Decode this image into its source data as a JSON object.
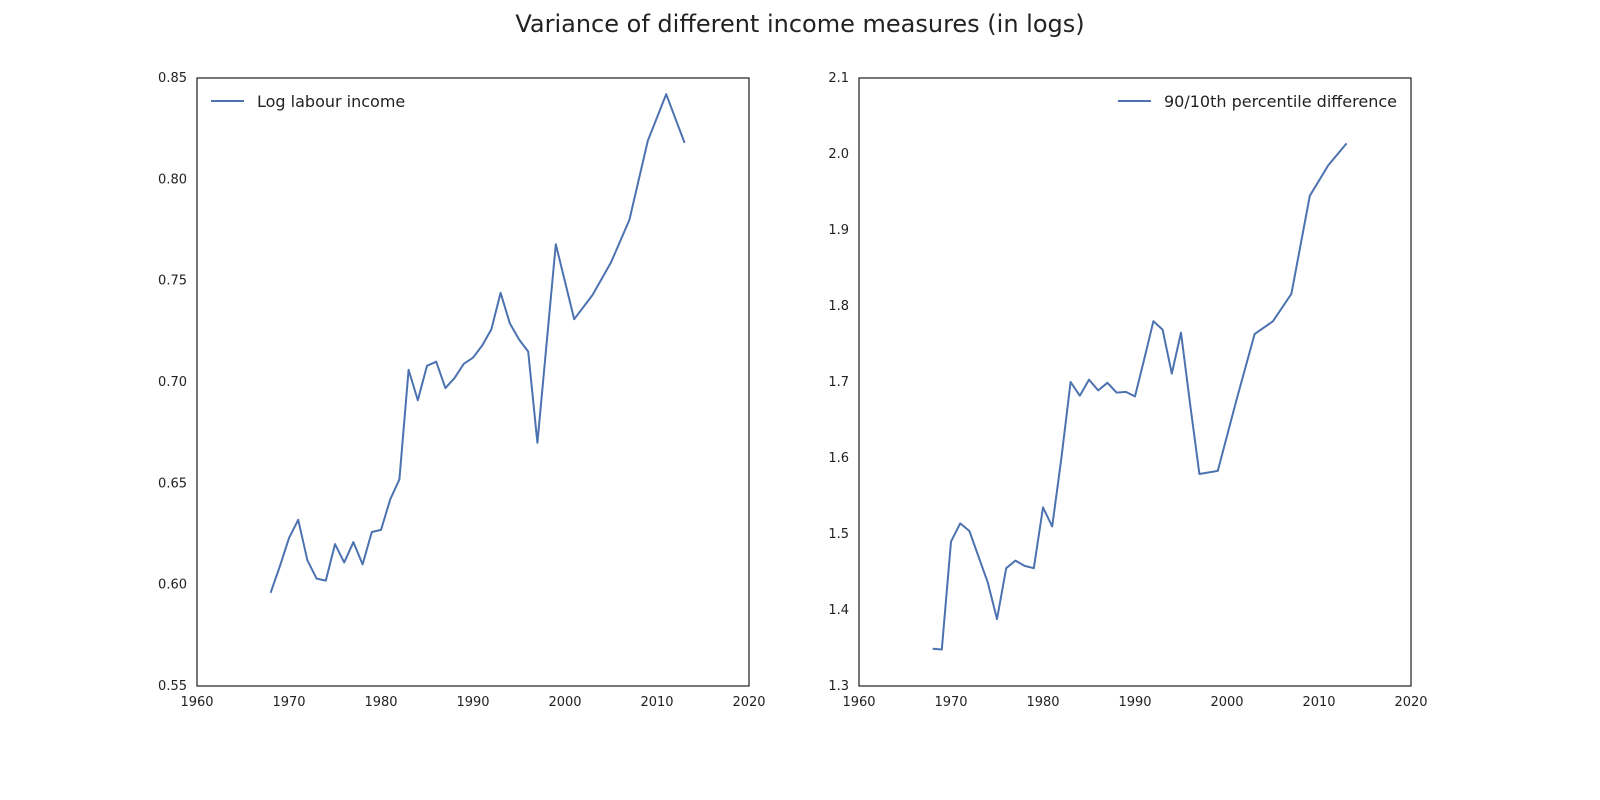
{
  "figure": {
    "title": "Variance of different income measures (in logs)"
  },
  "chart_data": [
    {
      "type": "line",
      "title": "",
      "xlabel": "",
      "ylabel": "",
      "xlim": [
        1960,
        2020
      ],
      "ylim": [
        0.55,
        0.85
      ],
      "x_ticks": [
        "1960",
        "1970",
        "1980",
        "1990",
        "2000",
        "2010",
        "2020"
      ],
      "y_ticks": [
        "0.55",
        "0.60",
        "0.65",
        "0.70",
        "0.75",
        "0.80",
        "0.85"
      ],
      "grid": false,
      "legend_position": "top-left",
      "series": [
        {
          "name": "Log labour income",
          "color": "#4c72b0",
          "x": [
            1968,
            1969,
            1970,
            1971,
            1972,
            1973,
            1974,
            1975,
            1976,
            1977,
            1978,
            1979,
            1980,
            1981,
            1982,
            1983,
            1984,
            1985,
            1986,
            1987,
            1988,
            1989,
            1990,
            1991,
            1992,
            1993,
            1994,
            1995,
            1996,
            1997,
            1999,
            2001,
            2003,
            2005,
            2007,
            2009,
            2011,
            2013
          ],
          "y": [
            0.596,
            0.609,
            0.623,
            0.632,
            0.612,
            0.603,
            0.602,
            0.62,
            0.611,
            0.621,
            0.61,
            0.626,
            0.627,
            0.642,
            0.652,
            0.706,
            0.691,
            0.708,
            0.71,
            0.697,
            0.702,
            0.709,
            0.712,
            0.718,
            0.726,
            0.744,
            0.729,
            0.721,
            0.715,
            0.67,
            0.768,
            0.731,
            0.743,
            0.759,
            0.78,
            0.819,
            0.842,
            0.818
          ]
        }
      ]
    },
    {
      "type": "line",
      "title": "",
      "xlabel": "",
      "ylabel": "",
      "xlim": [
        1960,
        2020
      ],
      "ylim": [
        1.3,
        2.1
      ],
      "x_ticks": [
        "1960",
        "1970",
        "1980",
        "1990",
        "2000",
        "2010",
        "2020"
      ],
      "y_ticks": [
        "1.3",
        "1.4",
        "1.5",
        "1.6",
        "1.7",
        "1.8",
        "1.9",
        "2.0",
        "2.1"
      ],
      "grid": false,
      "legend_position": "top-right",
      "series": [
        {
          "name": "90/10th percentile difference",
          "color": "#4c72b0",
          "x": [
            1968,
            1969,
            1970,
            1971,
            1972,
            1973,
            1974,
            1975,
            1976,
            1977,
            1978,
            1979,
            1980,
            1981,
            1982,
            1983,
            1984,
            1985,
            1986,
            1987,
            1988,
            1989,
            1990,
            1991,
            1992,
            1993,
            1994,
            1995,
            1996,
            1997,
            1999,
            2001,
            2003,
            2005,
            2007,
            2009,
            2011,
            2013
          ],
          "y": [
            1.349,
            1.348,
            1.49,
            1.514,
            1.504,
            1.47,
            1.436,
            1.388,
            1.455,
            1.465,
            1.458,
            1.455,
            1.535,
            1.51,
            1.6,
            1.7,
            1.682,
            1.703,
            1.689,
            1.699,
            1.686,
            1.687,
            1.681,
            1.73,
            1.78,
            1.769,
            1.711,
            1.765,
            1.67,
            1.579,
            1.583,
            1.675,
            1.763,
            1.78,
            1.816,
            1.945,
            1.985,
            2.014
          ]
        }
      ]
    }
  ]
}
